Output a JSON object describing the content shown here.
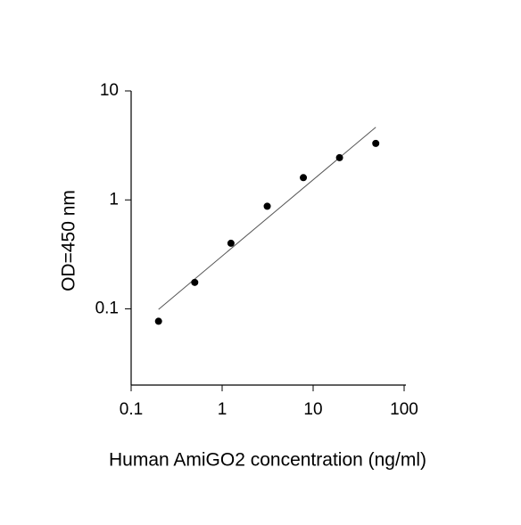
{
  "chart_data": {
    "type": "scatter",
    "x_label": "Human AmiGO2 concentration (ng/ml)",
    "y_label": "OD=450 nm",
    "x": [
      0.2,
      0.5,
      1.25,
      3.13,
      7.81,
      19.5,
      48.8
    ],
    "values": [
      0.077,
      0.175,
      0.4,
      0.875,
      1.6,
      2.44,
      3.3
    ],
    "color": "#000000",
    "fit": {
      "x": [
        0.2,
        48.8
      ],
      "y": [
        0.099,
        4.64
      ],
      "color": "#555555"
    },
    "xscale": "log",
    "yscale": "log",
    "xlim": [
      0.1,
      100
    ],
    "ylim": [
      0.02,
      10
    ],
    "xticks": [
      0.1,
      1,
      10,
      100
    ],
    "yticks": [
      0.1,
      1,
      10
    ]
  }
}
